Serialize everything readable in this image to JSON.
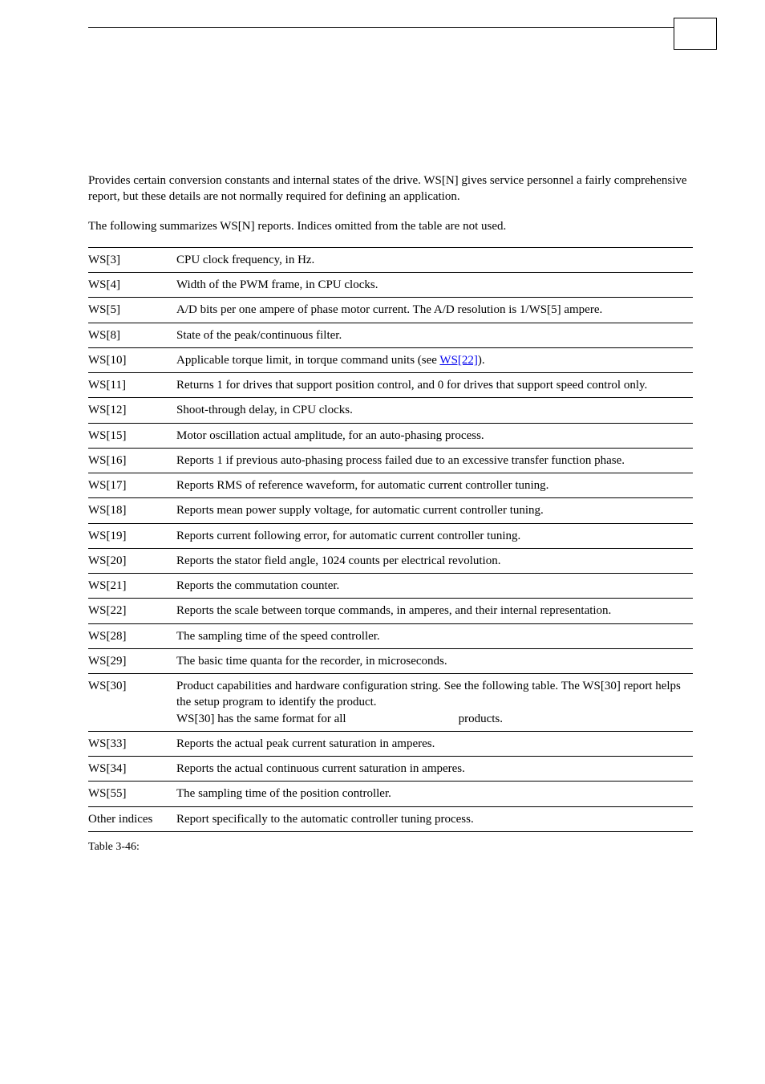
{
  "intro": {
    "p1": "Provides certain conversion constants and internal states of the drive. WS[N] gives service personnel a fairly comprehensive report, but these details are not normally required for defining an application.",
    "p2": "The following summarizes WS[N] reports. Indices omitted from the table are not used."
  },
  "rows": [
    {
      "key": "WS[3]",
      "desc": "CPU clock frequency, in Hz."
    },
    {
      "key": "WS[4]",
      "desc": "Width of the PWM frame, in CPU clocks."
    },
    {
      "key": "WS[5]",
      "desc": "A/D bits per one ampere of phase motor current. The A/D resolution is 1/WS[5] ampere."
    },
    {
      "key": "WS[8]",
      "desc": "State of the peak/continuous filter."
    },
    {
      "key": "WS[10]",
      "pre": "Applicable torque limit, in torque command units (see ",
      "link": "WS[22]",
      "post": ")."
    },
    {
      "key": "WS[11]",
      "desc": "Returns 1 for drives that support position control, and 0 for drives that support speed control only."
    },
    {
      "key": "WS[12]",
      "desc": "Shoot-through delay, in CPU clocks."
    },
    {
      "key": "WS[15]",
      "desc": "Motor oscillation actual amplitude, for an auto-phasing process."
    },
    {
      "key": "WS[16]",
      "desc": "Reports 1 if previous auto-phasing process failed due to an excessive transfer function phase."
    },
    {
      "key": "WS[17]",
      "desc": "Reports RMS of reference waveform, for automatic current controller tuning."
    },
    {
      "key": "WS[18]",
      "desc": "Reports mean power supply voltage, for automatic current controller tuning."
    },
    {
      "key": "WS[19]",
      "desc": "Reports current following error, for automatic current controller tuning."
    },
    {
      "key": "WS[20]",
      "desc": "Reports the stator field angle, 1024 counts per electrical revolution."
    },
    {
      "key": "WS[21]",
      "desc": "Reports the commutation counter."
    },
    {
      "key": "WS[22]",
      "desc": "Reports the scale between torque commands, in amperes, and their internal representation."
    },
    {
      "key": "WS[28]",
      "desc": "The sampling time of the speed controller."
    },
    {
      "key": "WS[29]",
      "desc": "The basic time quanta for the recorder, in microseconds."
    },
    {
      "key": "WS[30]",
      "line1": "Product capabilities and hardware configuration string. See the following table. The WS[30] report helps the setup program to identify the product.",
      "line2a": "WS[30] has the same format for all",
      "line2b": "products."
    },
    {
      "key": "WS[33]",
      "desc": "Reports the actual peak current saturation in amperes."
    },
    {
      "key": "WS[34]",
      "desc": "Reports the actual continuous current saturation in amperes."
    },
    {
      "key": "WS[55]",
      "desc": "The sampling time of the position controller."
    },
    {
      "key": "Other indices",
      "desc": "Report specifically to the automatic controller tuning process."
    }
  ],
  "caption": "Table 3-46:"
}
